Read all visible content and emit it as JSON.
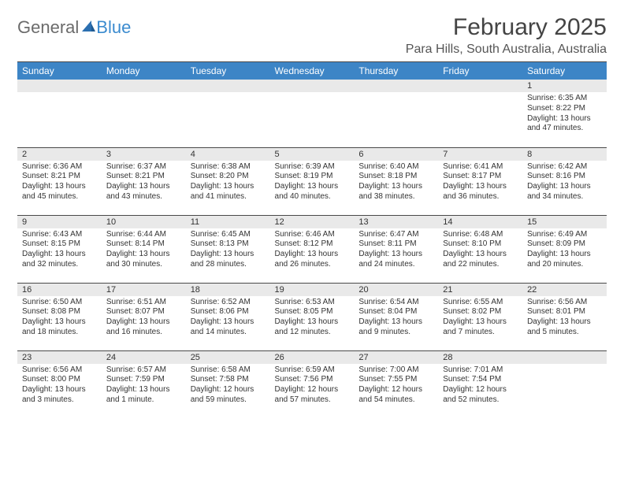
{
  "logo": {
    "text1": "General",
    "text2": "Blue"
  },
  "title": "February 2025",
  "location": "Para Hills, South Australia, Australia",
  "colors": {
    "header_bg": "#3d85c6",
    "header_text": "#ffffff",
    "daynum_bg": "#e9e9e9",
    "border": "#4a4a4a",
    "text": "#333333",
    "logo_gray": "#6b6b6b",
    "logo_blue": "#3b8bcf"
  },
  "day_headers": [
    "Sunday",
    "Monday",
    "Tuesday",
    "Wednesday",
    "Thursday",
    "Friday",
    "Saturday"
  ],
  "weeks": [
    [
      null,
      null,
      null,
      null,
      null,
      null,
      {
        "n": "1",
        "sr": "6:35 AM",
        "ss": "8:22 PM",
        "dl": "13 hours and 47 minutes."
      }
    ],
    [
      {
        "n": "2",
        "sr": "6:36 AM",
        "ss": "8:21 PM",
        "dl": "13 hours and 45 minutes."
      },
      {
        "n": "3",
        "sr": "6:37 AM",
        "ss": "8:21 PM",
        "dl": "13 hours and 43 minutes."
      },
      {
        "n": "4",
        "sr": "6:38 AM",
        "ss": "8:20 PM",
        "dl": "13 hours and 41 minutes."
      },
      {
        "n": "5",
        "sr": "6:39 AM",
        "ss": "8:19 PM",
        "dl": "13 hours and 40 minutes."
      },
      {
        "n": "6",
        "sr": "6:40 AM",
        "ss": "8:18 PM",
        "dl": "13 hours and 38 minutes."
      },
      {
        "n": "7",
        "sr": "6:41 AM",
        "ss": "8:17 PM",
        "dl": "13 hours and 36 minutes."
      },
      {
        "n": "8",
        "sr": "6:42 AM",
        "ss": "8:16 PM",
        "dl": "13 hours and 34 minutes."
      }
    ],
    [
      {
        "n": "9",
        "sr": "6:43 AM",
        "ss": "8:15 PM",
        "dl": "13 hours and 32 minutes."
      },
      {
        "n": "10",
        "sr": "6:44 AM",
        "ss": "8:14 PM",
        "dl": "13 hours and 30 minutes."
      },
      {
        "n": "11",
        "sr": "6:45 AM",
        "ss": "8:13 PM",
        "dl": "13 hours and 28 minutes."
      },
      {
        "n": "12",
        "sr": "6:46 AM",
        "ss": "8:12 PM",
        "dl": "13 hours and 26 minutes."
      },
      {
        "n": "13",
        "sr": "6:47 AM",
        "ss": "8:11 PM",
        "dl": "13 hours and 24 minutes."
      },
      {
        "n": "14",
        "sr": "6:48 AM",
        "ss": "8:10 PM",
        "dl": "13 hours and 22 minutes."
      },
      {
        "n": "15",
        "sr": "6:49 AM",
        "ss": "8:09 PM",
        "dl": "13 hours and 20 minutes."
      }
    ],
    [
      {
        "n": "16",
        "sr": "6:50 AM",
        "ss": "8:08 PM",
        "dl": "13 hours and 18 minutes."
      },
      {
        "n": "17",
        "sr": "6:51 AM",
        "ss": "8:07 PM",
        "dl": "13 hours and 16 minutes."
      },
      {
        "n": "18",
        "sr": "6:52 AM",
        "ss": "8:06 PM",
        "dl": "13 hours and 14 minutes."
      },
      {
        "n": "19",
        "sr": "6:53 AM",
        "ss": "8:05 PM",
        "dl": "13 hours and 12 minutes."
      },
      {
        "n": "20",
        "sr": "6:54 AM",
        "ss": "8:04 PM",
        "dl": "13 hours and 9 minutes."
      },
      {
        "n": "21",
        "sr": "6:55 AM",
        "ss": "8:02 PM",
        "dl": "13 hours and 7 minutes."
      },
      {
        "n": "22",
        "sr": "6:56 AM",
        "ss": "8:01 PM",
        "dl": "13 hours and 5 minutes."
      }
    ],
    [
      {
        "n": "23",
        "sr": "6:56 AM",
        "ss": "8:00 PM",
        "dl": "13 hours and 3 minutes."
      },
      {
        "n": "24",
        "sr": "6:57 AM",
        "ss": "7:59 PM",
        "dl": "13 hours and 1 minute."
      },
      {
        "n": "25",
        "sr": "6:58 AM",
        "ss": "7:58 PM",
        "dl": "12 hours and 59 minutes."
      },
      {
        "n": "26",
        "sr": "6:59 AM",
        "ss": "7:56 PM",
        "dl": "12 hours and 57 minutes."
      },
      {
        "n": "27",
        "sr": "7:00 AM",
        "ss": "7:55 PM",
        "dl": "12 hours and 54 minutes."
      },
      {
        "n": "28",
        "sr": "7:01 AM",
        "ss": "7:54 PM",
        "dl": "12 hours and 52 minutes."
      },
      null
    ]
  ],
  "labels": {
    "sunrise": "Sunrise: ",
    "sunset": "Sunset: ",
    "daylight": "Daylight: "
  }
}
